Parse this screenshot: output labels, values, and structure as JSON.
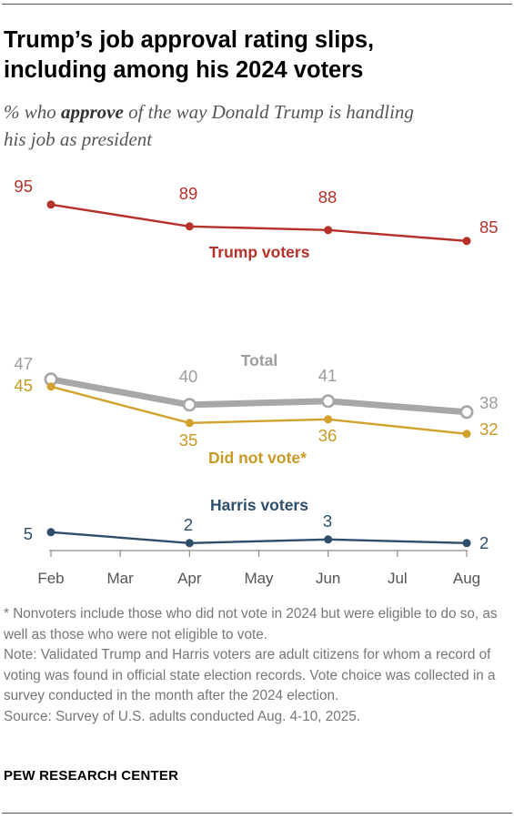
{
  "header": {
    "title_line1": "Trump’s job approval rating slips,",
    "title_line2": "including among his 2024 voters",
    "subtitle_prefix": "% who ",
    "subtitle_bold": "approve",
    "subtitle_line1_rest": " of the way Donald Trump is handling",
    "subtitle_line2": "his job as president"
  },
  "chart_data": {
    "type": "line",
    "x": [
      "Feb",
      "Mar",
      "Apr",
      "May",
      "Jun",
      "Jul",
      "Aug"
    ],
    "ylim": [
      0,
      100
    ],
    "grid": false,
    "series": [
      {
        "name": "Trump voters",
        "color": "#b5312a",
        "points": [
          {
            "x": "Feb",
            "y": 95,
            "label": "95"
          },
          {
            "x": "Apr",
            "y": 89,
            "label": "89"
          },
          {
            "x": "Jun",
            "y": 88,
            "label": "88"
          },
          {
            "x": "Aug",
            "y": 85,
            "label": "85"
          }
        ]
      },
      {
        "name": "Total",
        "color": "#a7a7a7",
        "points": [
          {
            "x": "Feb",
            "y": 47,
            "label": "47"
          },
          {
            "x": "Apr",
            "y": 40,
            "label": "40"
          },
          {
            "x": "Jun",
            "y": 41,
            "label": "41"
          },
          {
            "x": "Aug",
            "y": 38,
            "label": "38"
          }
        ]
      },
      {
        "name": "Did not vote*",
        "color": "#d2a22d",
        "points": [
          {
            "x": "Feb",
            "y": 45,
            "label": "45"
          },
          {
            "x": "Apr",
            "y": 35,
            "label": "35"
          },
          {
            "x": "Jun",
            "y": 36,
            "label": "36"
          },
          {
            "x": "Aug",
            "y": 32,
            "label": "32"
          }
        ]
      },
      {
        "name": "Harris voters",
        "color": "#2e4e6b",
        "points": [
          {
            "x": "Feb",
            "y": 5,
            "label": "5"
          },
          {
            "x": "Apr",
            "y": 2,
            "label": "2"
          },
          {
            "x": "Jun",
            "y": 3,
            "label": "3"
          },
          {
            "x": "Aug",
            "y": 2,
            "label": "2"
          }
        ]
      }
    ]
  },
  "notes": {
    "nonvoters": "* Nonvoters include those who did not vote in 2024 but were eligible to do so, as well as those who were not eligible to vote.",
    "note": "Note: Validated Trump and Harris voters are adult citizens for whom a record of voting was found in official state election records. Vote choice was collected in a survey conducted in the month after the 2024 election.",
    "source": "Source: Survey of U.S. adults conducted Aug. 4-10, 2025."
  },
  "footer": {
    "org": "PEW RESEARCH CENTER"
  }
}
